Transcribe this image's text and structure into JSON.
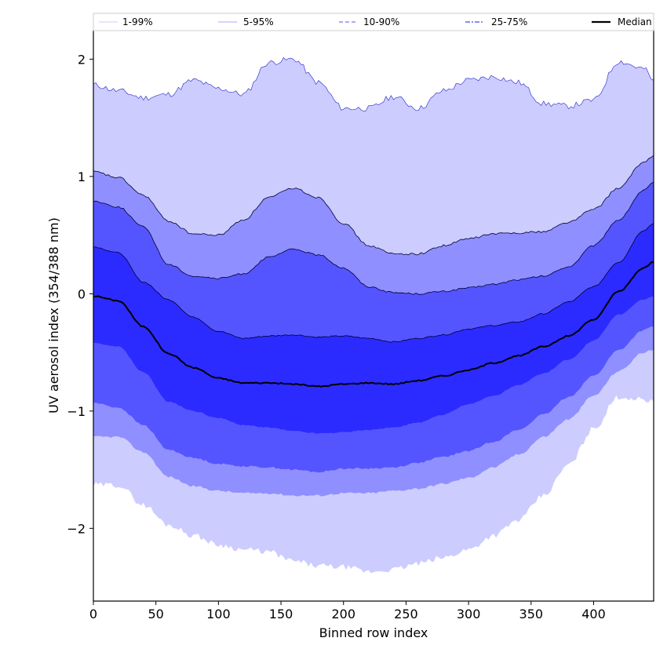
{
  "chart_data": {
    "type": "area",
    "title": "",
    "xlabel": "Binned row index",
    "ylabel": "UV aerosol index (354/388 nm)",
    "xlim": [
      0,
      448
    ],
    "ylim": [
      -2.62,
      2.25
    ],
    "x_ticks": [
      0,
      50,
      100,
      150,
      200,
      250,
      300,
      350,
      400
    ],
    "y_ticks": [
      -2,
      -1,
      0,
      1,
      2
    ],
    "y_tick_labels": [
      "−2",
      "−1",
      "0",
      "1",
      "2"
    ],
    "grid": false,
    "legend_position": "top",
    "x": [
      0,
      20,
      40,
      60,
      80,
      100,
      120,
      140,
      160,
      180,
      200,
      220,
      240,
      260,
      280,
      300,
      320,
      340,
      360,
      380,
      400,
      420,
      440,
      448
    ],
    "bands": [
      {
        "name": "1-99%",
        "color": "#ccccff",
        "line_style": "solid",
        "upper": [
          1.78,
          1.73,
          1.67,
          1.7,
          1.82,
          1.75,
          1.7,
          1.97,
          2.0,
          1.8,
          1.58,
          1.58,
          1.68,
          1.58,
          1.73,
          1.82,
          1.85,
          1.8,
          1.62,
          1.6,
          1.65,
          1.98,
          1.92,
          1.82
        ],
        "lower": [
          -1.63,
          -1.63,
          -1.8,
          -1.97,
          -2.06,
          -2.14,
          -2.18,
          -2.2,
          -2.28,
          -2.32,
          -2.33,
          -2.37,
          -2.35,
          -2.3,
          -2.25,
          -2.18,
          -2.06,
          -1.93,
          -1.72,
          -1.46,
          -1.15,
          -0.88,
          -0.9,
          -0.92
        ]
      },
      {
        "name": "5-95%",
        "color": "#8f8fff",
        "line_style": "solid",
        "upper": [
          1.04,
          0.99,
          0.84,
          0.62,
          0.51,
          0.5,
          0.63,
          0.82,
          0.9,
          0.82,
          0.6,
          0.41,
          0.34,
          0.34,
          0.41,
          0.47,
          0.51,
          0.52,
          0.53,
          0.61,
          0.72,
          0.9,
          1.12,
          1.18
        ],
        "lower": [
          -1.22,
          -1.22,
          -1.35,
          -1.56,
          -1.64,
          -1.68,
          -1.7,
          -1.7,
          -1.72,
          -1.72,
          -1.7,
          -1.7,
          -1.68,
          -1.66,
          -1.62,
          -1.57,
          -1.48,
          -1.37,
          -1.22,
          -1.07,
          -0.87,
          -0.66,
          -0.5,
          -0.48
        ]
      },
      {
        "name": "10-90%",
        "color": "#5555ff",
        "line_style": "dashed",
        "upper": [
          0.79,
          0.74,
          0.57,
          0.25,
          0.15,
          0.13,
          0.17,
          0.31,
          0.38,
          0.33,
          0.22,
          0.06,
          0.01,
          0.0,
          0.02,
          0.05,
          0.08,
          0.12,
          0.15,
          0.23,
          0.41,
          0.63,
          0.88,
          0.95
        ]
      },
      {
        "name": "25-75%",
        "color": "#2b2bff",
        "line_style": "dashdot",
        "upper": [
          0.4,
          0.35,
          0.1,
          -0.05,
          -0.2,
          -0.32,
          -0.38,
          -0.36,
          -0.35,
          -0.37,
          -0.36,
          -0.38,
          -0.41,
          -0.38,
          -0.35,
          -0.3,
          -0.27,
          -0.24,
          -0.17,
          -0.07,
          0.06,
          0.27,
          0.54,
          0.6
        ],
        "lower": [
          -0.42,
          -0.45,
          -0.67,
          -0.92,
          -1.0,
          -1.06,
          -1.12,
          -1.14,
          -1.17,
          -1.19,
          -1.18,
          -1.16,
          -1.14,
          -1.1,
          -1.03,
          -0.94,
          -0.87,
          -0.78,
          -0.68,
          -0.56,
          -0.4,
          -0.18,
          -0.05,
          -0.02
        ]
      }
    ],
    "band_lower_extra": [
      {
        "name": "10-90%",
        "lower": [
          -0.93,
          -0.97,
          -1.12,
          -1.33,
          -1.4,
          -1.45,
          -1.47,
          -1.48,
          -1.5,
          -1.52,
          -1.49,
          -1.49,
          -1.48,
          -1.44,
          -1.39,
          -1.34,
          -1.26,
          -1.16,
          -1.03,
          -0.88,
          -0.7,
          -0.48,
          -0.31,
          -0.28
        ]
      }
    ],
    "series": [
      {
        "name": "Median",
        "color": "#000000",
        "y": [
          -0.02,
          -0.06,
          -0.28,
          -0.51,
          -0.63,
          -0.72,
          -0.76,
          -0.76,
          -0.77,
          -0.79,
          -0.77,
          -0.76,
          -0.77,
          -0.74,
          -0.7,
          -0.65,
          -0.59,
          -0.53,
          -0.45,
          -0.36,
          -0.22,
          0.02,
          0.22,
          0.27
        ]
      }
    ],
    "legend": [
      "1-99%",
      "5-95%",
      "10-90%",
      "25-75%",
      "Median"
    ]
  }
}
